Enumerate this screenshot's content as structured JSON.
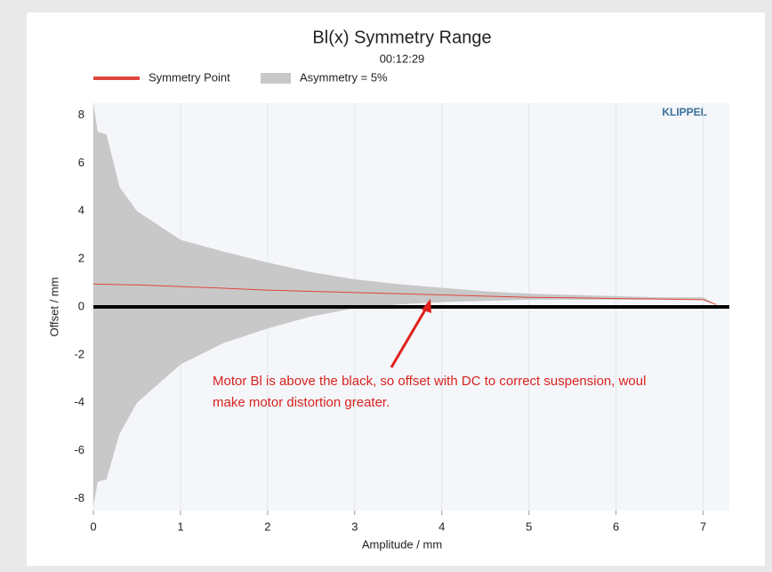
{
  "chart_data": {
    "type": "band",
    "title": "Bl(x) Symmetry Range",
    "subtitle": "00:12:29",
    "watermark": "KLIPPEL",
    "x_label": "Amplitude / mm",
    "y_label": "Offset / mm",
    "annotation": [
      "Motor Bl is above the black, so offset with DC to correct suspension, woul",
      "make motor distortion greater."
    ],
    "x": [
      0,
      0.05,
      0.15,
      0.3,
      0.5,
      1,
      1.5,
      2,
      2.5,
      3,
      3.5,
      4,
      4.5,
      5,
      5.5,
      6,
      6.5,
      7,
      7.15
    ],
    "series": [
      {
        "name": "Symmetry Point",
        "color": "#e0463c",
        "values": [
          0.95,
          0.95,
          0.94,
          0.93,
          0.92,
          0.85,
          0.78,
          0.7,
          0.65,
          0.6,
          0.55,
          0.5,
          0.45,
          0.4,
          0.38,
          0.35,
          0.33,
          0.3,
          0.1
        ]
      },
      {
        "name": "Asymmetry = 5%",
        "color": "#c8c8c8",
        "values": [
          8.5,
          7.3,
          7.2,
          5,
          4,
          2.8,
          2.3,
          1.85,
          1.45,
          1.15,
          0.95,
          0.8,
          0.65,
          0.55,
          0.5,
          0.45,
          0.4,
          0.4,
          0.1
        ],
        "lower": [
          -8.3,
          -7.3,
          -7.2,
          -5.3,
          -4,
          -2.4,
          -1.5,
          -0.9,
          -0.4,
          -0.05,
          0.1,
          0.2,
          0.25,
          0.3,
          0.3,
          0.3,
          0.3,
          0.3,
          0.1
        ]
      }
    ],
    "xlim": [
      0,
      7.3
    ],
    "ylim": [
      -8.5,
      8.5
    ],
    "xticks": [
      0,
      1,
      2,
      3,
      4,
      5,
      6,
      7
    ],
    "yticks": [
      -8,
      -6,
      -4,
      -2,
      0,
      2,
      4,
      6,
      8
    ],
    "grid": true
  }
}
